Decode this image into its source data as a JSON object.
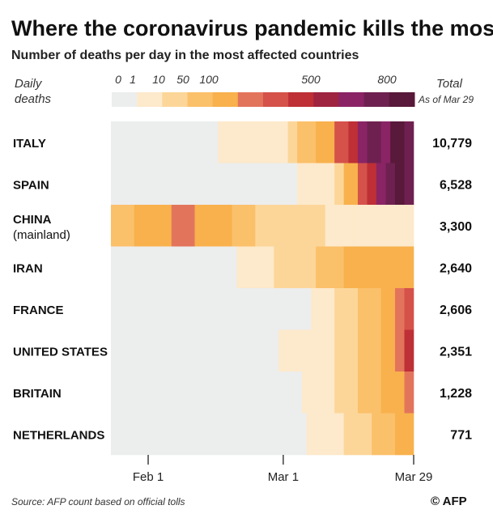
{
  "title": "Where the coronavirus pandemic kills the most...",
  "subtitle": "Number of deaths per day in the most affected countries",
  "legend": {
    "label_line1": "Daily",
    "label_line2": "deaths",
    "ticks": [
      "0",
      "1",
      "10",
      "50",
      "100",
      "500",
      "800"
    ],
    "total_label": "Total",
    "asof_label": "As of Mar 29"
  },
  "colors": {
    "scale": [
      "#eceded",
      "#fde9cb",
      "#fcd699",
      "#fbc06a",
      "#f8b14c",
      "#e3745c",
      "#d4524a",
      "#be2f36",
      "#9e2440",
      "#8a2465",
      "#6e2150",
      "#58193a"
    ]
  },
  "source": "Source: AFP count based on official tolls",
  "credit": "© AFP",
  "chart_data": {
    "type": "heatmap",
    "title": "Where the coronavirus pandemic kills the most...",
    "subtitle": "Number of deaths per day in the most affected countries",
    "legend_title": "Daily deaths",
    "x_ticks": [
      "Feb 1",
      "Mar 1",
      "Mar 29"
    ],
    "x_range": [
      "2020-01-24",
      "2020-03-29"
    ],
    "color_scale_breaks": [
      0,
      1,
      10,
      50,
      100,
      500,
      800
    ],
    "grid": false,
    "rows": [
      {
        "country": "ITALY",
        "total": "10,779",
        "segments": [
          [
            "2020-01-24",
            "2020-02-16",
            0
          ],
          [
            "2020-02-16",
            "2020-03-02",
            1
          ],
          [
            "2020-03-02",
            "2020-03-04",
            2
          ],
          [
            "2020-03-04",
            "2020-03-08",
            3
          ],
          [
            "2020-03-08",
            "2020-03-12",
            4
          ],
          [
            "2020-03-12",
            "2020-03-15",
            6
          ],
          [
            "2020-03-15",
            "2020-03-17",
            7
          ],
          [
            "2020-03-17",
            "2020-03-19",
            9
          ],
          [
            "2020-03-19",
            "2020-03-22",
            10
          ],
          [
            "2020-03-22",
            "2020-03-24",
            9
          ],
          [
            "2020-03-24",
            "2020-03-27",
            11
          ],
          [
            "2020-03-27",
            "2020-03-29",
            10
          ]
        ]
      },
      {
        "country": "SPAIN",
        "total": "6,528",
        "segments": [
          [
            "2020-01-24",
            "2020-03-04",
            0
          ],
          [
            "2020-03-04",
            "2020-03-12",
            1
          ],
          [
            "2020-03-12",
            "2020-03-14",
            2
          ],
          [
            "2020-03-14",
            "2020-03-17",
            4
          ],
          [
            "2020-03-17",
            "2020-03-19",
            6
          ],
          [
            "2020-03-19",
            "2020-03-21",
            7
          ],
          [
            "2020-03-21",
            "2020-03-23",
            9
          ],
          [
            "2020-03-23",
            "2020-03-25",
            10
          ],
          [
            "2020-03-25",
            "2020-03-27",
            11
          ],
          [
            "2020-03-27",
            "2020-03-29",
            10
          ]
        ]
      },
      {
        "country": "CHINA",
        "country_sub": "(mainland)",
        "total": "3,300",
        "segments": [
          [
            "2020-01-24",
            "2020-01-29",
            3
          ],
          [
            "2020-01-29",
            "2020-02-06",
            4
          ],
          [
            "2020-02-06",
            "2020-02-11",
            5
          ],
          [
            "2020-02-11",
            "2020-02-19",
            4
          ],
          [
            "2020-02-19",
            "2020-02-24",
            3
          ],
          [
            "2020-02-24",
            "2020-03-10",
            2
          ],
          [
            "2020-03-10",
            "2020-03-16",
            1
          ],
          [
            "2020-03-16",
            "2020-03-29",
            1
          ]
        ]
      },
      {
        "country": "IRAN",
        "total": "2,640",
        "segments": [
          [
            "2020-01-24",
            "2020-02-20",
            0
          ],
          [
            "2020-02-20",
            "2020-02-28",
            1
          ],
          [
            "2020-02-28",
            "2020-03-08",
            2
          ],
          [
            "2020-03-08",
            "2020-03-14",
            3
          ],
          [
            "2020-03-14",
            "2020-03-29",
            4
          ]
        ]
      },
      {
        "country": "FRANCE",
        "total": "2,606",
        "segments": [
          [
            "2020-01-24",
            "2020-02-14",
            0
          ],
          [
            "2020-02-14",
            "2020-03-07",
            0
          ],
          [
            "2020-03-07",
            "2020-03-12",
            1
          ],
          [
            "2020-03-12",
            "2020-03-17",
            2
          ],
          [
            "2020-03-17",
            "2020-03-22",
            3
          ],
          [
            "2020-03-22",
            "2020-03-25",
            4
          ],
          [
            "2020-03-25",
            "2020-03-27",
            5
          ],
          [
            "2020-03-27",
            "2020-03-29",
            6
          ]
        ]
      },
      {
        "country": "UNITED STATES",
        "total": "2,351",
        "segments": [
          [
            "2020-01-24",
            "2020-02-29",
            0
          ],
          [
            "2020-02-29",
            "2020-03-06",
            1
          ],
          [
            "2020-03-06",
            "2020-03-12",
            1
          ],
          [
            "2020-03-12",
            "2020-03-17",
            2
          ],
          [
            "2020-03-17",
            "2020-03-22",
            3
          ],
          [
            "2020-03-22",
            "2020-03-25",
            4
          ],
          [
            "2020-03-25",
            "2020-03-27",
            5
          ],
          [
            "2020-03-27",
            "2020-03-29",
            7
          ]
        ]
      },
      {
        "country": "BRITAIN",
        "total": "1,228",
        "segments": [
          [
            "2020-01-24",
            "2020-03-05",
            0
          ],
          [
            "2020-03-05",
            "2020-03-12",
            1
          ],
          [
            "2020-03-12",
            "2020-03-17",
            2
          ],
          [
            "2020-03-17",
            "2020-03-22",
            3
          ],
          [
            "2020-03-22",
            "2020-03-27",
            4
          ],
          [
            "2020-03-27",
            "2020-03-29",
            5
          ]
        ]
      },
      {
        "country": "NETHERLANDS",
        "total": "771",
        "segments": [
          [
            "2020-01-24",
            "2020-03-06",
            0
          ],
          [
            "2020-03-06",
            "2020-03-14",
            1
          ],
          [
            "2020-03-14",
            "2020-03-20",
            2
          ],
          [
            "2020-03-20",
            "2020-03-25",
            3
          ],
          [
            "2020-03-25",
            "2020-03-29",
            4
          ]
        ]
      }
    ]
  }
}
